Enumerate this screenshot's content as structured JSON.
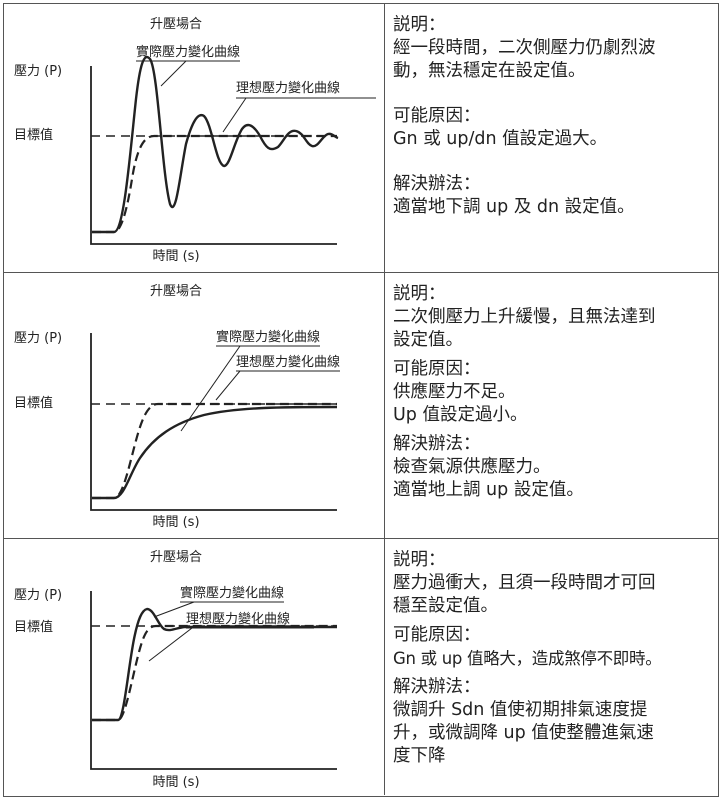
{
  "rows": [
    {
      "diagram": {
        "title": "升壓場合",
        "ylabel": "壓力 (P)",
        "setpoint_label": "目標值",
        "xlabel": "時間 (s)",
        "actual_label": "實際壓力變化曲線",
        "ideal_label": "理想壓力變化曲線"
      },
      "description": {
        "heading": "説明：",
        "lines": [
          "經一段時間，二次側壓力仍劇烈波",
          "動，無法穩定在設定值。"
        ]
      },
      "causes": {
        "heading": "可能原因：",
        "lines": [
          "Gn 或 up/dn 值設定過大。"
        ]
      },
      "solution": {
        "heading": "解決辦法：",
        "lines": [
          "適當地下調 up 及 dn 設定值。"
        ]
      }
    },
    {
      "diagram": {
        "title": "升壓場合",
        "ylabel": "壓力 (P)",
        "setpoint_label": "目標值",
        "xlabel": "時間 (s)",
        "actual_label": "實際壓力變化曲線",
        "ideal_label": "理想壓力變化曲線"
      },
      "description": {
        "heading": "説明：",
        "lines": [
          "二次側壓力上升緩慢，且無法達到",
          "設定值。"
        ]
      },
      "causes": {
        "heading": "可能原因：",
        "lines": [
          "供應壓力不足。",
          "Up 值設定過小。"
        ]
      },
      "solution": {
        "heading": "解決辦法：",
        "lines": [
          "檢查氣源供應壓力。",
          "適當地上調 up 設定值。"
        ]
      }
    },
    {
      "diagram": {
        "title": "升壓場合",
        "ylabel": "壓力 (P)",
        "setpoint_label": "目標值",
        "xlabel": "時間 (s)",
        "actual_label": "實際壓力變化曲線",
        "ideal_label": "理想壓力變化曲線"
      },
      "description": {
        "heading": "説明：",
        "lines": [
          "壓力過衝大，且須一段時間才可回",
          "穩至設定值。"
        ]
      },
      "causes": {
        "heading": "可能原因：",
        "lines": [
          "Gn 或 up 值略大，造成煞停不即時。"
        ]
      },
      "solution": {
        "heading": "解決辦法：",
        "lines": [
          "微調升 Sdn 值使初期排氣速度提",
          "升，或微調降 up 值使整體進氣速",
          "度下降"
        ]
      }
    }
  ]
}
